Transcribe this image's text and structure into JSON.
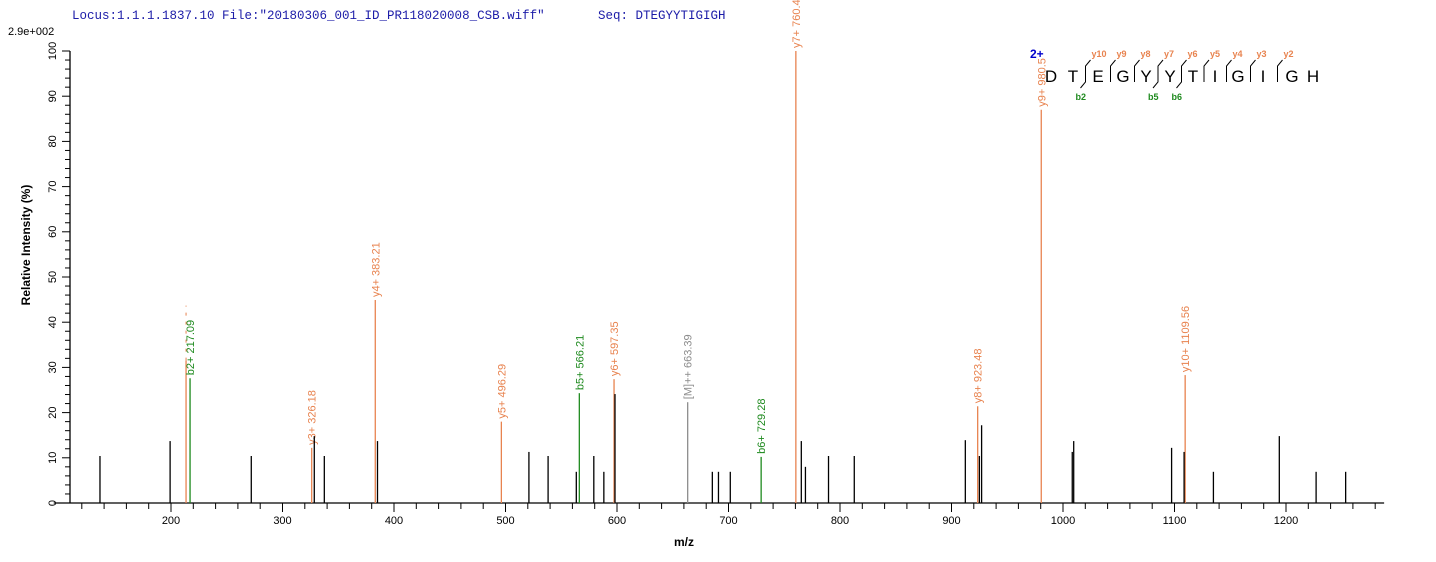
{
  "header": {
    "locus": "Locus:1.1.1.1837.10 File:\"20180306_001_ID_PR118020008_CSB.wiff\"",
    "seq_label": "Seq: DTEGYYTIGIGH",
    "max_intensity": "2.9e+002"
  },
  "colors": {
    "y_ion": "#e8834f",
    "b_ion": "#1e8a1e",
    "precursor": "#8c8c8c",
    "unassigned": "#000000",
    "charge": "#0000cc",
    "header": "#1c1ca8"
  },
  "chart_data": {
    "type": "bar",
    "title": "",
    "xlabel": "m/z",
    "ylabel": "Relative   Intensity (%)",
    "xlim": [
      102,
      1288
    ],
    "ylim": [
      0,
      100
    ],
    "xticks": [
      200,
      300,
      400,
      500,
      600,
      700,
      800,
      900,
      1000,
      1100,
      1200
    ],
    "yticks": [
      0,
      10,
      20,
      30,
      40,
      50,
      60,
      70,
      80,
      90,
      100
    ],
    "grid": false,
    "peaks": [
      {
        "mz": 136.3,
        "intensity": 10.4,
        "type": "none",
        "label": ""
      },
      {
        "mz": 199.2,
        "intensity": 13.7,
        "type": "none",
        "label": ""
      },
      {
        "mz": 213.5,
        "intensity": 31.5,
        "type": "y",
        "label": ""
      },
      {
        "mz": 217.09,
        "intensity": 27.6,
        "type": "b",
        "label": "b2+ 217.09"
      },
      {
        "mz": 272.0,
        "intensity": 10.4,
        "type": "none",
        "label": ""
      },
      {
        "mz": 326.18,
        "intensity": 12.2,
        "type": "y",
        "label": "y3+ 326.18"
      },
      {
        "mz": 328.5,
        "intensity": 14.8,
        "type": "none",
        "label": ""
      },
      {
        "mz": 337.5,
        "intensity": 10.4,
        "type": "none",
        "label": ""
      },
      {
        "mz": 383.21,
        "intensity": 44.9,
        "type": "y",
        "label": "y4+ 383.21"
      },
      {
        "mz": 385.2,
        "intensity": 13.7,
        "type": "none",
        "label": ""
      },
      {
        "mz": 496.29,
        "intensity": 18.0,
        "type": "y",
        "label": "y5+ 496.29"
      },
      {
        "mz": 521.0,
        "intensity": 11.3,
        "type": "none",
        "label": ""
      },
      {
        "mz": 538.2,
        "intensity": 10.4,
        "type": "none",
        "label": ""
      },
      {
        "mz": 563.5,
        "intensity": 6.9,
        "type": "none",
        "label": ""
      },
      {
        "mz": 566.21,
        "intensity": 24.3,
        "type": "b",
        "label": "b5+ 566.21"
      },
      {
        "mz": 579.2,
        "intensity": 10.4,
        "type": "none",
        "label": ""
      },
      {
        "mz": 588.2,
        "intensity": 6.9,
        "type": "none",
        "label": ""
      },
      {
        "mz": 597.35,
        "intensity": 27.4,
        "type": "y",
        "label": "y6+ 597.35"
      },
      {
        "mz": 598.2,
        "intensity": 24.1,
        "type": "none",
        "label": ""
      },
      {
        "mz": 663.39,
        "intensity": 22.3,
        "type": "precursor",
        "label": "[M]++ 663.39"
      },
      {
        "mz": 685.5,
        "intensity": 6.9,
        "type": "none",
        "label": ""
      },
      {
        "mz": 691.0,
        "intensity": 6.9,
        "type": "none",
        "label": ""
      },
      {
        "mz": 701.6,
        "intensity": 6.9,
        "type": "none",
        "label": ""
      },
      {
        "mz": 729.28,
        "intensity": 10.2,
        "type": "b",
        "label": "b6+ 729.28"
      },
      {
        "mz": 760.41,
        "intensity": 100,
        "type": "y",
        "label": "y7+ 760.41"
      },
      {
        "mz": 765.3,
        "intensity": 13.7,
        "type": "none",
        "label": ""
      },
      {
        "mz": 769.0,
        "intensity": 8.0,
        "type": "none",
        "label": ""
      },
      {
        "mz": 789.7,
        "intensity": 10.4,
        "type": "none",
        "label": ""
      },
      {
        "mz": 812.8,
        "intensity": 10.4,
        "type": "none",
        "label": ""
      },
      {
        "mz": 912.4,
        "intensity": 13.9,
        "type": "none",
        "label": ""
      },
      {
        "mz": 923.48,
        "intensity": 21.4,
        "type": "y",
        "label": "y8+ 923.48"
      },
      {
        "mz": 925.0,
        "intensity": 10.4,
        "type": "none",
        "label": ""
      },
      {
        "mz": 927.0,
        "intensity": 17.2,
        "type": "none",
        "label": ""
      },
      {
        "mz": 980.5,
        "intensity": 87,
        "type": "y",
        "label": "y9+ 980.5"
      },
      {
        "mz": 1008.3,
        "intensity": 11.3,
        "type": "none",
        "label": ""
      },
      {
        "mz": 1009.6,
        "intensity": 13.7,
        "type": "none",
        "label": ""
      },
      {
        "mz": 1097.4,
        "intensity": 12.2,
        "type": "none",
        "label": ""
      },
      {
        "mz": 1109.56,
        "intensity": 28.3,
        "type": "y",
        "label": "y10+ 1109.56"
      },
      {
        "mz": 1108.6,
        "intensity": 11.3,
        "type": "none",
        "label": ""
      },
      {
        "mz": 1134.9,
        "intensity": 6.9,
        "type": "none",
        "label": ""
      },
      {
        "mz": 1194.0,
        "intensity": 14.8,
        "type": "none",
        "label": ""
      },
      {
        "mz": 1227.0,
        "intensity": 6.9,
        "type": "none",
        "label": ""
      },
      {
        "mz": 1253.5,
        "intensity": 6.9,
        "type": "none",
        "label": ""
      }
    ],
    "sequence": {
      "charge": "2+",
      "residues": [
        "D",
        "T",
        "E",
        "G",
        "Y",
        "Y",
        "T",
        "I",
        "G",
        "I",
        "G",
        "H"
      ],
      "y_ions": [
        {
          "after": 2,
          "label": "y10"
        },
        {
          "after": 3,
          "label": "y9"
        },
        {
          "after": 4,
          "label": "y8"
        },
        {
          "after": 5,
          "label": "y7"
        },
        {
          "after": 6,
          "label": "y6"
        },
        {
          "after": 7,
          "label": "y5"
        },
        {
          "after": 8,
          "label": "y4"
        },
        {
          "after": 9,
          "label": "y3"
        },
        {
          "after": 10,
          "label": "y2"
        }
      ],
      "b_ions": [
        {
          "after": 2,
          "label": "b2"
        },
        {
          "after": 5,
          "label": "b5"
        },
        {
          "after": 6,
          "label": "b6"
        }
      ]
    }
  }
}
